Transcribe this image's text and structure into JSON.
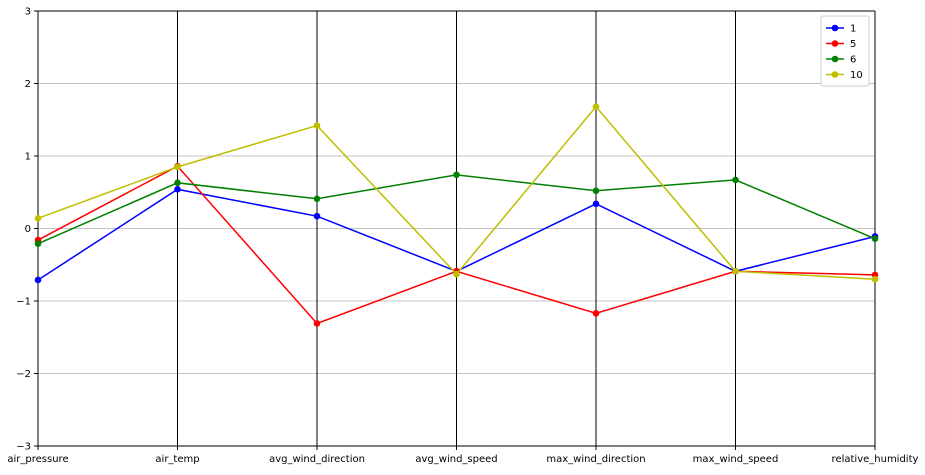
{
  "chart_data": {
    "type": "line",
    "subtype": "parallel-coordinates",
    "title": "",
    "xlabel": "",
    "ylabel": "",
    "categories": [
      "air_pressure",
      "air_temp",
      "avg_wind_direction",
      "avg_wind_speed",
      "max_wind_direction",
      "max_wind_speed",
      "relative_humidity"
    ],
    "ylim": [
      -3,
      3
    ],
    "yticks": [
      -3,
      -2,
      -1,
      0,
      1,
      2,
      3
    ],
    "ytick_labels": [
      "−3",
      "−2",
      "−1",
      "0",
      "1",
      "2",
      "3"
    ],
    "grid": "horizontal",
    "legend_position": "top-right",
    "series": [
      {
        "name": "1",
        "color": "#0000ff",
        "values": [
          -0.71,
          0.54,
          0.17,
          -0.59,
          0.34,
          -0.59,
          -0.11
        ]
      },
      {
        "name": "5",
        "color": "#ff0000",
        "values": [
          -0.16,
          0.86,
          -1.31,
          -0.59,
          -1.17,
          -0.59,
          -0.64
        ]
      },
      {
        "name": "6",
        "color": "#008000",
        "values": [
          -0.21,
          0.63,
          0.41,
          0.74,
          0.52,
          0.67,
          -0.14
        ]
      },
      {
        "name": "10",
        "color": "#bfbf00",
        "values": [
          0.14,
          0.85,
          1.42,
          -0.63,
          1.68,
          -0.59,
          -0.7
        ]
      }
    ]
  }
}
